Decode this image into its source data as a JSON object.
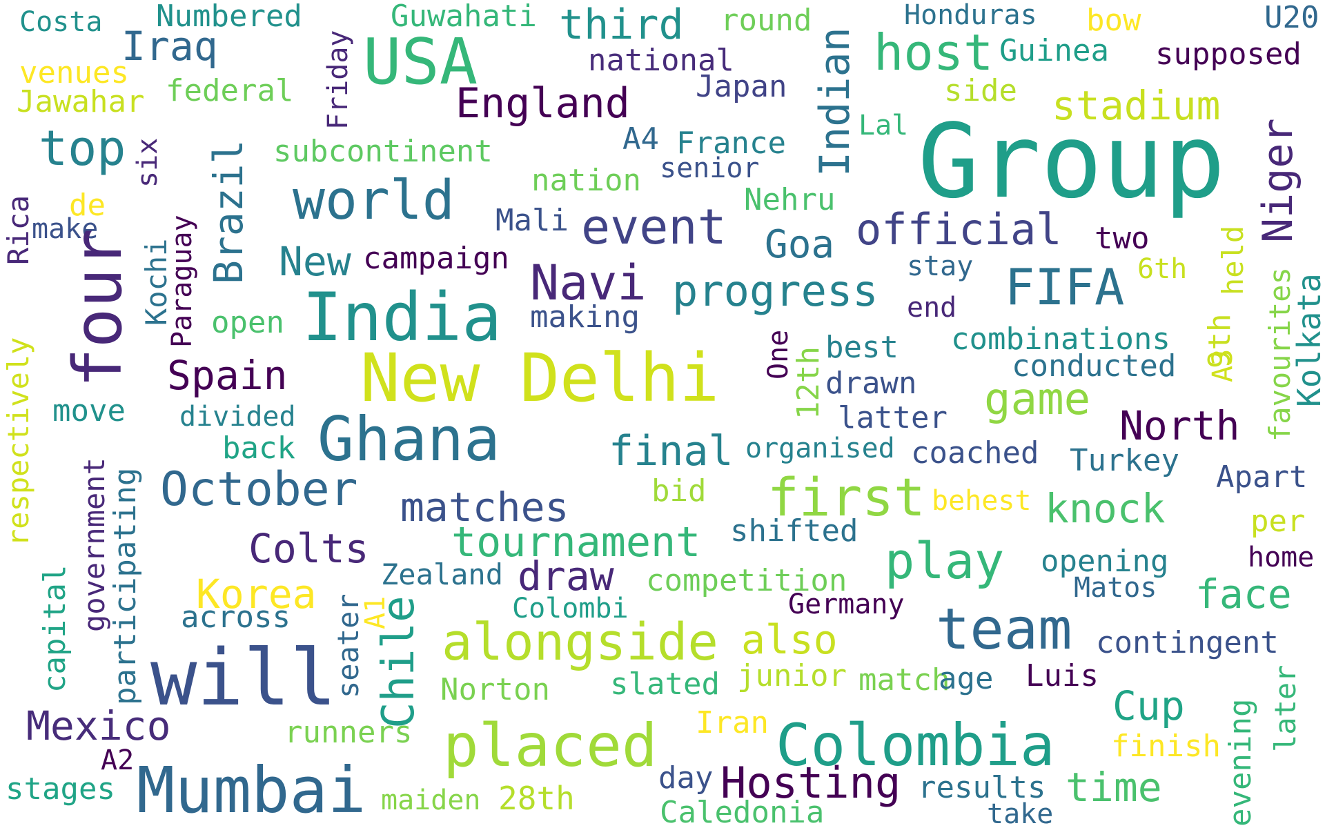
{
  "word_cloud": {
    "words": [
      {
        "text": "Group",
        "color": "#1f9e89"
      },
      {
        "text": "New Delhi",
        "color": "#d0e11c"
      },
      {
        "text": "India",
        "color": "#21918c"
      },
      {
        "text": "USA",
        "color": "#35b779"
      },
      {
        "text": "Ghana",
        "color": "#2c728e"
      },
      {
        "text": "will",
        "color": "#3b528b"
      },
      {
        "text": "Mumbai",
        "color": "#31688e"
      },
      {
        "text": "placed",
        "color": "#a0da39"
      },
      {
        "text": "Colombia",
        "color": "#1f9e89"
      },
      {
        "text": "team",
        "color": "#31688e"
      },
      {
        "text": "world",
        "color": "#2c728e"
      },
      {
        "text": "four",
        "color": "#482878"
      },
      {
        "text": "alongside",
        "color": "#b5de2b"
      },
      {
        "text": "host",
        "color": "#35b779"
      },
      {
        "text": "FIFA",
        "color": "#2c728e"
      },
      {
        "text": "event",
        "color": "#414487"
      },
      {
        "text": "official",
        "color": "#414487"
      },
      {
        "text": "October",
        "color": "#31688e"
      },
      {
        "text": "first",
        "color": "#90d743"
      },
      {
        "text": "Navi",
        "color": "#482878"
      },
      {
        "text": "England",
        "color": "#440154"
      },
      {
        "text": "top",
        "color": "#26828e"
      },
      {
        "text": "game",
        "color": "#90d743"
      },
      {
        "text": "progress",
        "color": "#26828e"
      },
      {
        "text": "tournament",
        "color": "#35b779"
      },
      {
        "text": "play",
        "color": "#35b779"
      },
      {
        "text": "Chile",
        "color": "#1f9e89"
      },
      {
        "text": "matches",
        "color": "#3b528b"
      },
      {
        "text": "Korea",
        "color": "#fde725"
      },
      {
        "text": "Spain",
        "color": "#440154"
      },
      {
        "text": "Colts",
        "color": "#482878"
      },
      {
        "text": "Mexico",
        "color": "#472c7a"
      },
      {
        "text": "North",
        "color": "#440154"
      },
      {
        "text": "Hosting",
        "color": "#440154"
      },
      {
        "text": "Indian",
        "color": "#2c728e"
      },
      {
        "text": "Niger",
        "color": "#482878"
      },
      {
        "text": "stadium",
        "color": "#c8e020"
      },
      {
        "text": "knock",
        "color": "#4ac16d"
      },
      {
        "text": "time",
        "color": "#4ac16d"
      },
      {
        "text": "Cup",
        "color": "#20a486"
      },
      {
        "text": "face",
        "color": "#35b779"
      },
      {
        "text": "final",
        "color": "#26828e"
      },
      {
        "text": "Iraq",
        "color": "#31688e"
      },
      {
        "text": "third",
        "color": "#21918c"
      },
      {
        "text": "draw",
        "color": "#482878"
      },
      {
        "text": "also",
        "color": "#c8e020"
      },
      {
        "text": "Brazil",
        "color": "#2c728e"
      },
      {
        "text": "Goa",
        "color": "#2c728e"
      },
      {
        "text": "New",
        "color": "#26828e"
      },
      {
        "text": "campaign",
        "color": "#440154"
      },
      {
        "text": "Guwahati",
        "color": "#35b779"
      },
      {
        "text": "Numbered",
        "color": "#21918c"
      },
      {
        "text": "Guinea",
        "color": "#1f9e89"
      },
      {
        "text": "national",
        "color": "#472c7a"
      },
      {
        "text": "Japan",
        "color": "#414487"
      },
      {
        "text": "supposed",
        "color": "#440154"
      },
      {
        "text": "federal",
        "color": "#6ece58"
      },
      {
        "text": "subcontinent",
        "color": "#5ec962"
      },
      {
        "text": "nation",
        "color": "#6ece58"
      },
      {
        "text": "France",
        "color": "#26828e"
      },
      {
        "text": "senior",
        "color": "#3b528b"
      },
      {
        "text": "Nehru",
        "color": "#4ac16d"
      },
      {
        "text": "Mali",
        "color": "#3b528b"
      },
      {
        "text": "combinations",
        "color": "#21918c"
      },
      {
        "text": "conducted",
        "color": "#2c728e"
      },
      {
        "text": "coached",
        "color": "#3b528b"
      },
      {
        "text": "Turkey",
        "color": "#2c728e"
      },
      {
        "text": "Apart",
        "color": "#3b528b"
      },
      {
        "text": "opening",
        "color": "#26828e"
      },
      {
        "text": "contingent",
        "color": "#3b528b"
      },
      {
        "text": "competition",
        "color": "#6ece58"
      },
      {
        "text": "Zealand",
        "color": "#2c728e"
      },
      {
        "text": "across",
        "color": "#2c728e"
      },
      {
        "text": "Norton",
        "color": "#7ad151"
      },
      {
        "text": "slated",
        "color": "#35b779"
      },
      {
        "text": "junior",
        "color": "#b5de2b"
      },
      {
        "text": "match",
        "color": "#7ad151"
      },
      {
        "text": "age",
        "color": "#2c728e"
      },
      {
        "text": "Luis",
        "color": "#440154"
      },
      {
        "text": "runners",
        "color": "#7ad151"
      },
      {
        "text": "stages",
        "color": "#20a486"
      },
      {
        "text": "maiden",
        "color": "#86d549"
      },
      {
        "text": "28th",
        "color": "#b5de2b"
      },
      {
        "text": "Caledonia",
        "color": "#4ac16d"
      },
      {
        "text": "results",
        "color": "#2c728e"
      },
      {
        "text": "take",
        "color": "#31688e"
      },
      {
        "text": "finish",
        "color": "#fde725"
      },
      {
        "text": "Iran",
        "color": "#fde725"
      },
      {
        "text": "day",
        "color": "#3b528b"
      },
      {
        "text": "A2",
        "color": "#440154"
      },
      {
        "text": "Germany",
        "color": "#440154"
      },
      {
        "text": "Colombi",
        "color": "#1f9e89"
      },
      {
        "text": "shifted",
        "color": "#2c728e"
      },
      {
        "text": "organised",
        "color": "#26828e"
      },
      {
        "text": "bid",
        "color": "#a0da39"
      },
      {
        "text": "behest",
        "color": "#fde725"
      },
      {
        "text": "per",
        "color": "#c8e020"
      },
      {
        "text": "home",
        "color": "#440154"
      },
      {
        "text": "Matos",
        "color": "#31688e"
      },
      {
        "text": "latter",
        "color": "#3b528b"
      },
      {
        "text": "drawn",
        "color": "#3b528b"
      },
      {
        "text": "best",
        "color": "#26828e"
      },
      {
        "text": "end",
        "color": "#482878"
      },
      {
        "text": "stay",
        "color": "#31688e"
      },
      {
        "text": "two",
        "color": "#440154"
      },
      {
        "text": "6th",
        "color": "#c8e020"
      },
      {
        "text": "making",
        "color": "#3b528b"
      },
      {
        "text": "open",
        "color": "#4ac16d"
      },
      {
        "text": "move",
        "color": "#21918c"
      },
      {
        "text": "divided",
        "color": "#26828e"
      },
      {
        "text": "back",
        "color": "#20a486"
      },
      {
        "text": "make",
        "color": "#3b528b"
      },
      {
        "text": "de",
        "color": "#fde725"
      },
      {
        "text": "venues",
        "color": "#fde725"
      },
      {
        "text": "Jawahar",
        "color": "#c8e020"
      },
      {
        "text": "Costa",
        "color": "#21918c"
      },
      {
        "text": "round",
        "color": "#6ece58"
      },
      {
        "text": "Honduras",
        "color": "#2c728e"
      },
      {
        "text": "bow",
        "color": "#fde725"
      },
      {
        "text": "U20",
        "color": "#31688e"
      },
      {
        "text": "side",
        "color": "#b5de2b"
      },
      {
        "text": "Lal",
        "color": "#35b779"
      },
      {
        "text": "A4",
        "color": "#31688e"
      },
      {
        "text": "Friday",
        "color": "#482878"
      },
      {
        "text": "six",
        "color": "#482878"
      },
      {
        "text": "Rica",
        "color": "#482878"
      },
      {
        "text": "respectively",
        "color": "#d0e11c"
      },
      {
        "text": "government",
        "color": "#482878"
      },
      {
        "text": "participating",
        "color": "#2c728e"
      },
      {
        "text": "capital",
        "color": "#20a486"
      },
      {
        "text": "Paraguay",
        "color": "#440154"
      },
      {
        "text": "Kochi",
        "color": "#2c728e"
      },
      {
        "text": "seater",
        "color": "#31688e"
      },
      {
        "text": "A1",
        "color": "#fde725"
      },
      {
        "text": "One",
        "color": "#440154"
      },
      {
        "text": "12th",
        "color": "#86d549"
      },
      {
        "text": "held",
        "color": "#c8e020"
      },
      {
        "text": "9th",
        "color": "#c8e020"
      },
      {
        "text": "A3",
        "color": "#d0e11c"
      },
      {
        "text": "favourites",
        "color": "#86d549"
      },
      {
        "text": "Kolkata",
        "color": "#21918c"
      },
      {
        "text": "evening",
        "color": "#35b779"
      },
      {
        "text": "later",
        "color": "#35b779"
      }
    ]
  }
}
